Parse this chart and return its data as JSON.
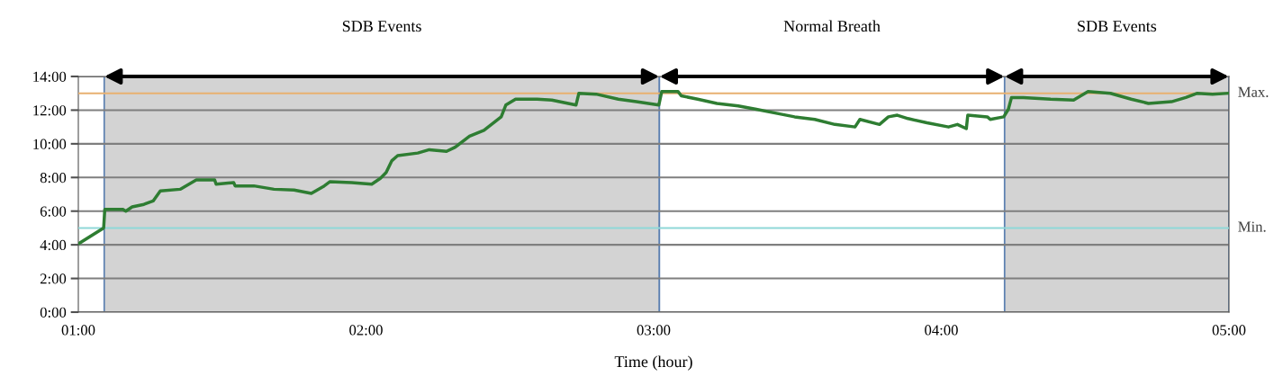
{
  "chart_data": {
    "type": "line",
    "xlabel": "Time (hour)",
    "x": [
      1.004,
      1.088,
      1.092,
      1.155,
      1.165,
      1.187,
      1.228,
      1.26,
      1.285,
      1.354,
      1.41,
      1.474,
      1.479,
      1.54,
      1.545,
      1.61,
      1.68,
      1.75,
      1.81,
      1.855,
      1.875,
      1.95,
      2.02,
      2.05,
      2.07,
      2.09,
      2.11,
      2.18,
      2.22,
      2.28,
      2.31,
      2.36,
      2.41,
      2.47,
      2.486,
      2.52,
      2.595,
      2.646,
      2.73,
      2.74,
      2.8,
      2.877,
      2.94,
      3.018,
      3.028,
      3.085,
      3.096,
      3.153,
      3.22,
      3.294,
      3.357,
      3.43,
      3.49,
      3.56,
      3.63,
      3.7,
      3.717,
      3.785,
      3.816,
      3.847,
      3.884,
      3.95,
      4.025,
      4.056,
      4.087,
      4.092,
      4.16,
      4.17,
      4.217,
      4.233,
      4.244,
      4.285,
      4.38,
      4.46,
      4.51,
      4.588,
      4.66,
      4.72,
      4.8,
      4.85,
      4.89,
      4.943,
      4.995
    ],
    "series": [
      {
        "color": "#2e7d32",
        "values": [
          4.1,
          5.0,
          6.1,
          6.1,
          6.0,
          6.25,
          6.4,
          6.6,
          7.2,
          7.3,
          7.85,
          7.85,
          7.6,
          7.7,
          7.5,
          7.5,
          7.3,
          7.25,
          7.05,
          7.5,
          7.75,
          7.7,
          7.6,
          7.95,
          8.3,
          9.0,
          9.3,
          9.45,
          9.65,
          9.55,
          9.8,
          10.45,
          10.8,
          11.6,
          12.3,
          12.65,
          12.65,
          12.6,
          12.3,
          13.0,
          12.95,
          12.65,
          12.5,
          12.3,
          13.1,
          13.1,
          12.85,
          12.65,
          12.4,
          12.25,
          12.05,
          11.8,
          11.6,
          11.45,
          11.15,
          11.0,
          11.45,
          11.15,
          11.6,
          11.7,
          11.5,
          11.25,
          11.0,
          11.15,
          10.9,
          11.7,
          11.6,
          11.45,
          11.6,
          12.05,
          12.75,
          12.75,
          12.65,
          12.6,
          13.1,
          13.0,
          12.65,
          12.4,
          12.5,
          12.75,
          13.0,
          12.95,
          13.0
        ]
      }
    ],
    "xlim": [
      1,
      5
    ],
    "xticks": [
      {
        "value": 1,
        "label": "01:00"
      },
      {
        "value": 2,
        "label": "02:00"
      },
      {
        "value": 3,
        "label": "03:00"
      },
      {
        "value": 4,
        "label": "04:00"
      },
      {
        "value": 5,
        "label": "05:00"
      }
    ],
    "ylim": [
      0,
      14
    ],
    "yticks": [
      {
        "value": 0,
        "label": "0:00"
      },
      {
        "value": 2,
        "label": "2:00"
      },
      {
        "value": 4,
        "label": "4:00"
      },
      {
        "value": 6,
        "label": "6:00"
      },
      {
        "value": 8,
        "label": "8:00"
      },
      {
        "value": 10,
        "label": "10:00"
      },
      {
        "value": 12,
        "label": "12:00"
      },
      {
        "value": 14,
        "label": "14:00"
      }
    ],
    "ref_lines": [
      {
        "axis": "y",
        "value": 13,
        "label": "Max.",
        "color": "#e8b070"
      },
      {
        "axis": "y",
        "value": 5,
        "label": "Min.",
        "color": "#8fd8d8"
      }
    ],
    "bands": [
      {
        "axis": "x",
        "from": 1.09,
        "to": 3.02,
        "label": "SDB Events",
        "color": "#d3d3d3"
      },
      {
        "axis": "x",
        "from": 3.02,
        "to": 4.22,
        "label": "Normal Breath",
        "color": "#ffffff"
      },
      {
        "axis": "x",
        "from": 4.22,
        "to": 5.0,
        "label": "SDB Events",
        "color": "#d3d3d3"
      }
    ],
    "grid": "y",
    "marker": "none",
    "line_style": "solid"
  }
}
